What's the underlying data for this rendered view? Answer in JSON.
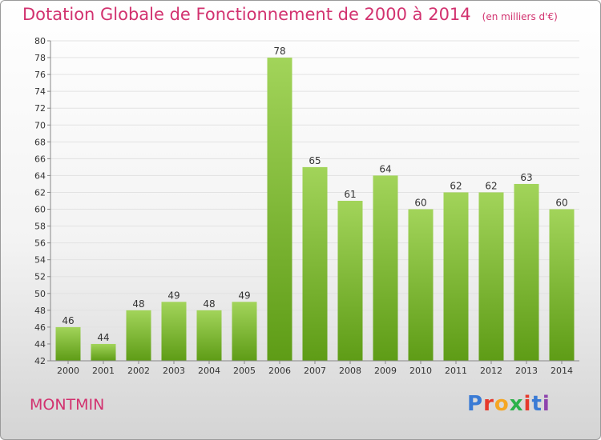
{
  "header": {
    "title": "Dotation Globale de Fonctionnement de 2000 à 2014",
    "subtitle": "(en milliers d'€)"
  },
  "footer": {
    "commune": "MONTMIN",
    "brand": "Proxiti",
    "brand_colors": [
      "#3a7bd5",
      "#e63a2c",
      "#f5a623",
      "#2cb24a",
      "#e63a2c",
      "#3a7bd5",
      "#8e44ad"
    ]
  },
  "colors": {
    "title": "#d2326f",
    "bar_light": "#a2d45a",
    "bar_dark": "#5e9c16",
    "grid": "#e2e2e2",
    "axis_text": "#333333"
  },
  "chart_data": {
    "type": "bar",
    "title": "Dotation Globale de Fonctionnement de 2000 à 2014",
    "subtitle": "(en milliers d'€)",
    "xlabel": "",
    "ylabel": "",
    "categories": [
      "2000",
      "2001",
      "2002",
      "2003",
      "2004",
      "2005",
      "2006",
      "2007",
      "2008",
      "2009",
      "2010",
      "2011",
      "2012",
      "2013",
      "2014"
    ],
    "values": [
      46,
      44,
      48,
      49,
      48,
      49,
      78,
      65,
      61,
      64,
      60,
      62,
      62,
      63,
      60
    ],
    "ylim": [
      42,
      80
    ],
    "yticks": [
      42,
      44,
      46,
      48,
      50,
      52,
      54,
      56,
      58,
      60,
      62,
      64,
      66,
      68,
      70,
      72,
      74,
      76,
      78,
      80
    ],
    "grid": true,
    "data_labels": true
  }
}
